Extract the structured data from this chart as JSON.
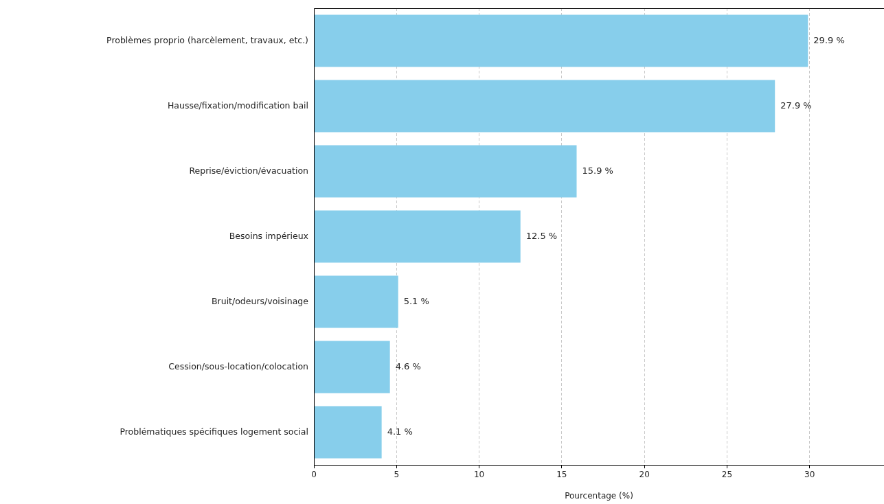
{
  "chart_data": {
    "type": "bar",
    "orientation": "horizontal",
    "xlabel": "Pourcentage (%)",
    "categories": [
      "Problèmes proprio (harcèlement, travaux, etc.)",
      "Hausse/fixation/modification bail",
      "Reprise/éviction/évacuation",
      "Besoins impérieux",
      "Bruit/odeurs/voisinage",
      "Cession/sous-location/colocation",
      "Problématiques spécifiques logement social"
    ],
    "values": [
      29.9,
      27.9,
      15.9,
      12.5,
      5.1,
      4.6,
      4.1
    ],
    "value_labels": [
      "29.9 %",
      "27.9 %",
      "15.9 %",
      "12.5 %",
      "5.1 %",
      "4.6 %",
      "4.1 %"
    ],
    "color": "#87ceeb",
    "xlim": [
      0,
      34.5
    ],
    "xticks": [
      0,
      5,
      10,
      15,
      20,
      25,
      30
    ],
    "grid": "x",
    "legend": false
  }
}
